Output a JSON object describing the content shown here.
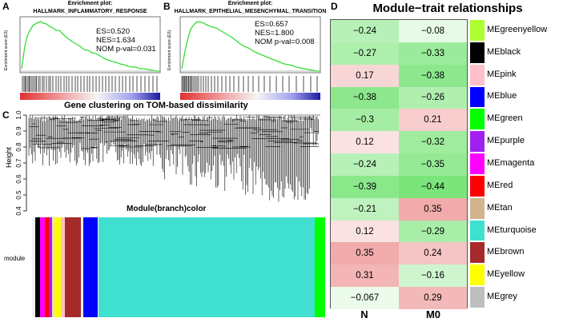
{
  "panel_a": {
    "letter": "A",
    "title_line1": "Enrichment plot:",
    "title_line2": "HALLMARK_INFLAMMATORY_RESPONSE",
    "y_label": "Enrichment score (ES)",
    "es": "ES=0.520",
    "nes": "NES=1.634",
    "pval": "NOM p-val=0.031"
  },
  "panel_b": {
    "letter": "B",
    "title_line1": "Enrichment plot:",
    "title_line2": "HALLMARK_EPITHELIAL_MESENCHYMAL_TRANSITION",
    "y_label": "Enrichment score (ES)",
    "es": "ES=0.657",
    "nes": "NES=1.800",
    "pval": "NOM p-val=0.008"
  },
  "panel_c": {
    "letter": "C",
    "title": "Gene clustering on TOM-based dissimilarity",
    "y_label": "Height",
    "y_ticks": [
      "1.0",
      "0.9",
      "0.8",
      "0.7",
      "0.6",
      "0.5",
      "0.4"
    ],
    "color_bar_title": "Module(branch)color",
    "row_label": "module",
    "module_colors": [
      "#000000",
      "#ff00ff",
      "#ff0000",
      "#a020f0",
      "#f5deb3",
      "#ffff00",
      "#ffc0cb",
      "#a52a2a",
      "#0000ff",
      "#40e0d0",
      "#00ff00"
    ]
  },
  "panel_d": {
    "letter": "D",
    "title": "Module−trait relationships",
    "columns": [
      "N",
      "M0"
    ],
    "modules": [
      {
        "name": "MEgreenyellow",
        "color": "#adff2f",
        "values": [
          "−0.24",
          "−0.08"
        ]
      },
      {
        "name": "MEblack",
        "color": "#000000",
        "values": [
          "−0.27",
          "−0.33"
        ]
      },
      {
        "name": "MEpink",
        "color": "#ffc0cb",
        "values": [
          "0.17",
          "−0.38"
        ]
      },
      {
        "name": "MEblue",
        "color": "#0000ff",
        "values": [
          "−0.38",
          "−0.26"
        ]
      },
      {
        "name": "MEgreen",
        "color": "#00ff00",
        "values": [
          "−0.3",
          "0.21"
        ]
      },
      {
        "name": "MEpurple",
        "color": "#a020f0",
        "values": [
          "0.12",
          "−0.32"
        ]
      },
      {
        "name": "MEmagenta",
        "color": "#ff00ff",
        "values": [
          "−0.24",
          "−0.35"
        ]
      },
      {
        "name": "MEred",
        "color": "#ff0000",
        "values": [
          "−0.39",
          "−0.44"
        ]
      },
      {
        "name": "MEtan",
        "color": "#d2b48c",
        "values": [
          "−0.21",
          "0.35"
        ]
      },
      {
        "name": "MEturquoise",
        "color": "#40e0d0",
        "values": [
          "0.12",
          "−0.29"
        ]
      },
      {
        "name": "MEbrown",
        "color": "#a52a2a",
        "values": [
          "0.35",
          "0.24"
        ]
      },
      {
        "name": "MEyellow",
        "color": "#ffff00",
        "values": [
          "0.31",
          "−0.16"
        ]
      },
      {
        "name": "MEgrey",
        "color": "#bebebe",
        "values": [
          "−0.067",
          "0.29"
        ]
      }
    ]
  }
}
